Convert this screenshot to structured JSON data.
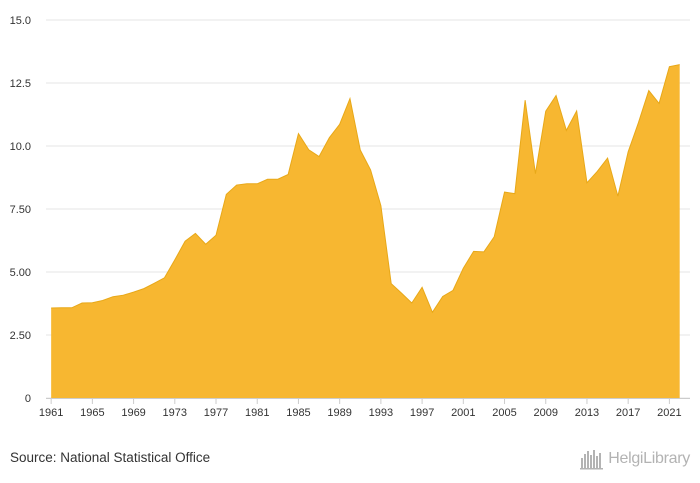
{
  "chart_data": {
    "type": "area",
    "title": "",
    "xlabel": "",
    "ylabel": "",
    "x": [
      1961,
      1962,
      1963,
      1964,
      1965,
      1966,
      1967,
      1968,
      1969,
      1970,
      1971,
      1972,
      1973,
      1974,
      1975,
      1976,
      1977,
      1978,
      1979,
      1980,
      1981,
      1982,
      1983,
      1984,
      1985,
      1986,
      1987,
      1988,
      1989,
      1990,
      1991,
      1992,
      1993,
      1994,
      1995,
      1996,
      1997,
      1998,
      1999,
      2000,
      2001,
      2002,
      2003,
      2004,
      2005,
      2006,
      2007,
      2008,
      2009,
      2010,
      2011,
      2012,
      2013,
      2014,
      2015,
      2016,
      2017,
      2018,
      2019,
      2020,
      2021,
      2022
    ],
    "values": [
      3.57,
      3.58,
      3.58,
      3.77,
      3.78,
      3.87,
      4.02,
      4.08,
      4.2,
      4.34,
      4.55,
      4.77,
      5.48,
      6.22,
      6.53,
      6.1,
      6.46,
      8.08,
      8.45,
      8.5,
      8.5,
      8.68,
      8.68,
      8.87,
      10.49,
      9.85,
      9.58,
      10.33,
      10.86,
      11.88,
      9.84,
      9.05,
      7.63,
      4.54,
      4.16,
      3.77,
      4.39,
      3.4,
      4.03,
      4.27,
      5.15,
      5.82,
      5.8,
      6.4,
      8.17,
      8.11,
      11.82,
      8.9,
      11.38,
      12.0,
      10.62,
      11.39,
      8.54,
      8.99,
      9.52,
      8.01,
      9.77,
      10.93,
      12.2,
      11.69,
      13.15,
      13.23
    ],
    "x_ticks": [
      "1961",
      "1965",
      "1969",
      "1973",
      "1977",
      "1981",
      "1985",
      "1989",
      "1993",
      "1997",
      "2001",
      "2005",
      "2009",
      "2013",
      "2017",
      "2021"
    ],
    "y_ticks": [
      "0",
      "2.50",
      "5.00",
      "7.50",
      "10.0",
      "12.5",
      "15.0"
    ],
    "ylim": [
      0,
      15
    ],
    "xlim": [
      1960.5,
      2023
    ],
    "grid": true,
    "legend": "none",
    "colors": {
      "fill": "#F7B731",
      "stroke": "#E8A818",
      "grid": "#e6e6e6",
      "axis": "#cccccc"
    }
  },
  "footer": {
    "source": "Source: National Statistical Office",
    "logo_text": "HelgiLibrary",
    "logo_icon": "city-skyline-icon"
  }
}
